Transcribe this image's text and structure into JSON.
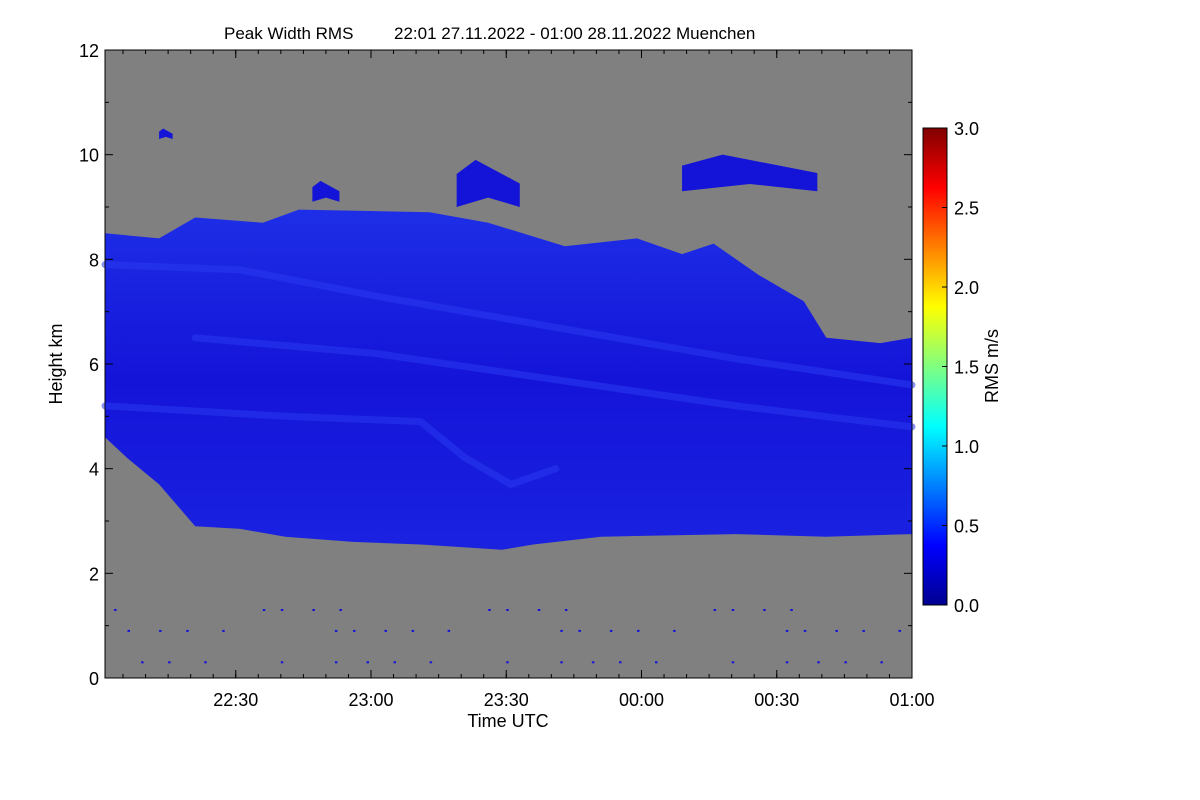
{
  "chart_data": {
    "type": "heatmap",
    "title": "Peak Width RMS",
    "subtitle": "22:01 27.11.2022 - 01:00 28.11.2022 Muenchen",
    "xlabel": "Time UTC",
    "ylabel": "Height km",
    "colorbar_label": "RMS m/s",
    "x_start": "22:01",
    "x_end": "01:00",
    "xlim_minutes": [
      0,
      179
    ],
    "ylim": [
      0,
      12
    ],
    "x_ticks": [
      {
        "label": "22:30",
        "minutes": 29
      },
      {
        "label": "23:00",
        "minutes": 59
      },
      {
        "label": "23:30",
        "minutes": 89
      },
      {
        "label": "00:00",
        "minutes": 119
      },
      {
        "label": "00:30",
        "minutes": 149
      },
      {
        "label": "01:00",
        "minutes": 179
      }
    ],
    "y_ticks": [
      0,
      2,
      4,
      6,
      8,
      10,
      12
    ],
    "colorbar_range": [
      0.0,
      3.0
    ],
    "colorbar_ticks": [
      "0.0",
      "0.5",
      "1.0",
      "1.5",
      "2.0",
      "2.5",
      "3.0"
    ],
    "colormap": [
      "#00008f",
      "#0000ff",
      "#0080ff",
      "#00ffff",
      "#80ff80",
      "#ffff00",
      "#ff8000",
      "#ff0000",
      "#800000"
    ],
    "background_color": "#808080",
    "cloud_color": "#1414d8",
    "cloud_highlight_color": "#2a3af0",
    "cloud_layer": {
      "base_km": [
        {
          "minutes": 0,
          "km": 4.6
        },
        {
          "minutes": 5,
          "km": 4.2
        },
        {
          "minutes": 12,
          "km": 3.7
        },
        {
          "minutes": 20,
          "km": 2.9
        },
        {
          "minutes": 30,
          "km": 2.85
        },
        {
          "minutes": 40,
          "km": 2.7
        },
        {
          "minutes": 55,
          "km": 2.6
        },
        {
          "minutes": 70,
          "km": 2.55
        },
        {
          "minutes": 88,
          "km": 2.45
        },
        {
          "minutes": 95,
          "km": 2.55
        },
        {
          "minutes": 110,
          "km": 2.7
        },
        {
          "minutes": 140,
          "km": 2.75
        },
        {
          "minutes": 160,
          "km": 2.7
        },
        {
          "minutes": 179,
          "km": 2.75
        }
      ],
      "top_km": [
        {
          "minutes": 0,
          "km": 8.5
        },
        {
          "minutes": 12,
          "km": 8.4
        },
        {
          "minutes": 20,
          "km": 8.8
        },
        {
          "minutes": 35,
          "km": 8.7
        },
        {
          "minutes": 43,
          "km": 8.95
        },
        {
          "minutes": 72,
          "km": 8.9
        },
        {
          "minutes": 85,
          "km": 8.7
        },
        {
          "minutes": 102,
          "km": 8.25
        },
        {
          "minutes": 118,
          "km": 8.4
        },
        {
          "minutes": 128,
          "km": 8.1
        },
        {
          "minutes": 135,
          "km": 8.3
        },
        {
          "minutes": 145,
          "km": 7.7
        },
        {
          "minutes": 155,
          "km": 7.2
        },
        {
          "minutes": 160,
          "km": 6.5
        },
        {
          "minutes": 172,
          "km": 6.4
        },
        {
          "minutes": 179,
          "km": 6.5
        }
      ]
    },
    "upper_cloud_patches": [
      {
        "from_min": 128,
        "to_min": 158,
        "base_km": 9.3,
        "top_km": 10.0
      },
      {
        "from_min": 78,
        "to_min": 92,
        "base_km": 9.0,
        "top_km": 9.9
      },
      {
        "from_min": 46,
        "to_min": 52,
        "base_km": 9.1,
        "top_km": 9.5
      },
      {
        "from_min": 12,
        "to_min": 15,
        "base_km": 10.3,
        "top_km": 10.5
      }
    ],
    "low_returns_km": [
      1.3,
      0.9,
      0.3
    ]
  }
}
